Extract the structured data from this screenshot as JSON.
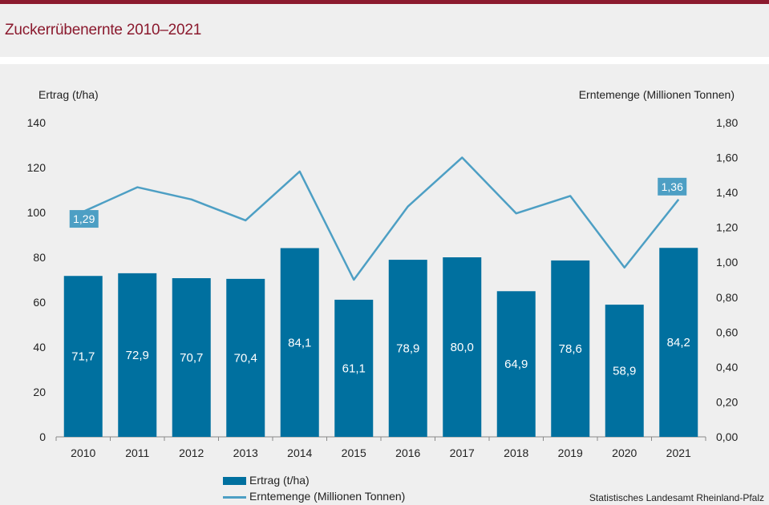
{
  "header": {
    "title": "Zuckerrübenernte 2010–2021"
  },
  "colors": {
    "accent": "#8b1a2e",
    "bar": "#00709f",
    "line": "#4d9fc4",
    "label_box": "#4d9fc4",
    "axis": "#888888"
  },
  "chart_data": {
    "type": "bar",
    "title": "Zuckerrübenernte 2010–2021",
    "categories": [
      "2010",
      "2011",
      "2012",
      "2013",
      "2014",
      "2015",
      "2016",
      "2017",
      "2018",
      "2019",
      "2020",
      "2021"
    ],
    "series": [
      {
        "name": "Ertrag (t/ha)",
        "type": "bar",
        "axis": "left",
        "values": [
          71.7,
          72.9,
          70.7,
          70.4,
          84.1,
          61.1,
          78.9,
          80.0,
          64.9,
          78.6,
          58.9,
          84.2
        ],
        "labels": [
          "71,7",
          "72,9",
          "70,7",
          "70,4",
          "84,1",
          "61,1",
          "78,9",
          "80,0",
          "64,9",
          "78,6",
          "58,9",
          "84,2"
        ]
      },
      {
        "name": "Erntemenge (Millionen Tonnen)",
        "type": "line",
        "axis": "right",
        "values": [
          1.29,
          1.43,
          1.36,
          1.24,
          1.52,
          0.9,
          1.32,
          1.6,
          1.28,
          1.38,
          0.97,
          1.36
        ],
        "annotations": [
          {
            "index": 0,
            "text": "1,29"
          },
          {
            "index": 11,
            "text": "1,36"
          }
        ]
      }
    ],
    "y_left": {
      "label": "Ertrag (t/ha)",
      "range": [
        0,
        140
      ],
      "ticks": [
        "0",
        "20",
        "40",
        "60",
        "80",
        "100",
        "120",
        "140"
      ]
    },
    "y_right": {
      "label": "Erntemenge (Millionen Tonnen)",
      "range": [
        0,
        1.8
      ],
      "ticks": [
        "0,00",
        "0,20",
        "0,40",
        "0,60",
        "0,80",
        "1,00",
        "1,20",
        "1,40",
        "1,60",
        "1,80"
      ]
    },
    "grid": false,
    "legend_position": "bottom"
  },
  "legend": {
    "bar_label": "Ertrag (t/ha)",
    "line_label": "Erntemenge (Millionen Tonnen)"
  },
  "source": "Statistisches Landesamt Rheinland-Pfalz"
}
